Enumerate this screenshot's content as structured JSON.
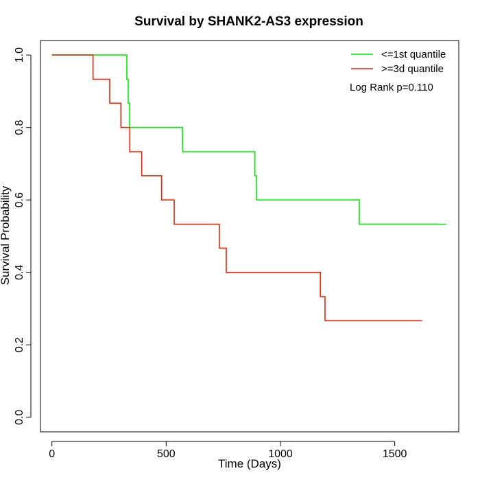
{
  "chart_data": {
    "type": "line",
    "title": "Survival by SHANK2-AS3 expression",
    "xlabel": "Time (Days)",
    "ylabel": "Survival Probability",
    "xlim": [
      -50,
      1780
    ],
    "ylim": [
      -0.04,
      1.04
    ],
    "x_ticks": [
      0,
      500,
      1000,
      1500
    ],
    "y_ticks": [
      0.0,
      0.2,
      0.4,
      0.6,
      0.8,
      1.0
    ],
    "x_tick_labels": [
      "0",
      "500",
      "1000",
      "1500"
    ],
    "y_tick_labels": [
      "0.0",
      "0.2",
      "0.4",
      "0.6",
      "0.8",
      "1.0"
    ],
    "grid": false,
    "legend_position": "top-right",
    "annotation": "Log Rank p=0.110",
    "series": [
      {
        "name": "<=1st quantile",
        "color": "#00ee00",
        "step_points": [
          [
            0,
            1.0
          ],
          [
            328,
            1.0
          ],
          [
            328,
            0.933
          ],
          [
            334,
            0.933
          ],
          [
            334,
            0.867
          ],
          [
            340,
            0.867
          ],
          [
            340,
            0.8
          ],
          [
            572,
            0.8
          ],
          [
            572,
            0.733
          ],
          [
            888,
            0.733
          ],
          [
            888,
            0.667
          ],
          [
            895,
            0.667
          ],
          [
            895,
            0.6
          ],
          [
            1345,
            0.6
          ],
          [
            1345,
            0.533
          ],
          [
            1725,
            0.533
          ]
        ]
      },
      {
        "name": ">=3d quantile",
        "color": "#ee2200",
        "step_points": [
          [
            0,
            1.0
          ],
          [
            180,
            1.0
          ],
          [
            180,
            0.933
          ],
          [
            253,
            0.933
          ],
          [
            253,
            0.867
          ],
          [
            302,
            0.867
          ],
          [
            302,
            0.8
          ],
          [
            341,
            0.8
          ],
          [
            341,
            0.733
          ],
          [
            393,
            0.733
          ],
          [
            393,
            0.667
          ],
          [
            480,
            0.667
          ],
          [
            480,
            0.6
          ],
          [
            535,
            0.6
          ],
          [
            535,
            0.533
          ],
          [
            733,
            0.533
          ],
          [
            733,
            0.467
          ],
          [
            763,
            0.467
          ],
          [
            763,
            0.4
          ],
          [
            1175,
            0.4
          ],
          [
            1175,
            0.333
          ],
          [
            1195,
            0.333
          ],
          [
            1195,
            0.267
          ],
          [
            1620,
            0.267
          ]
        ]
      }
    ]
  }
}
